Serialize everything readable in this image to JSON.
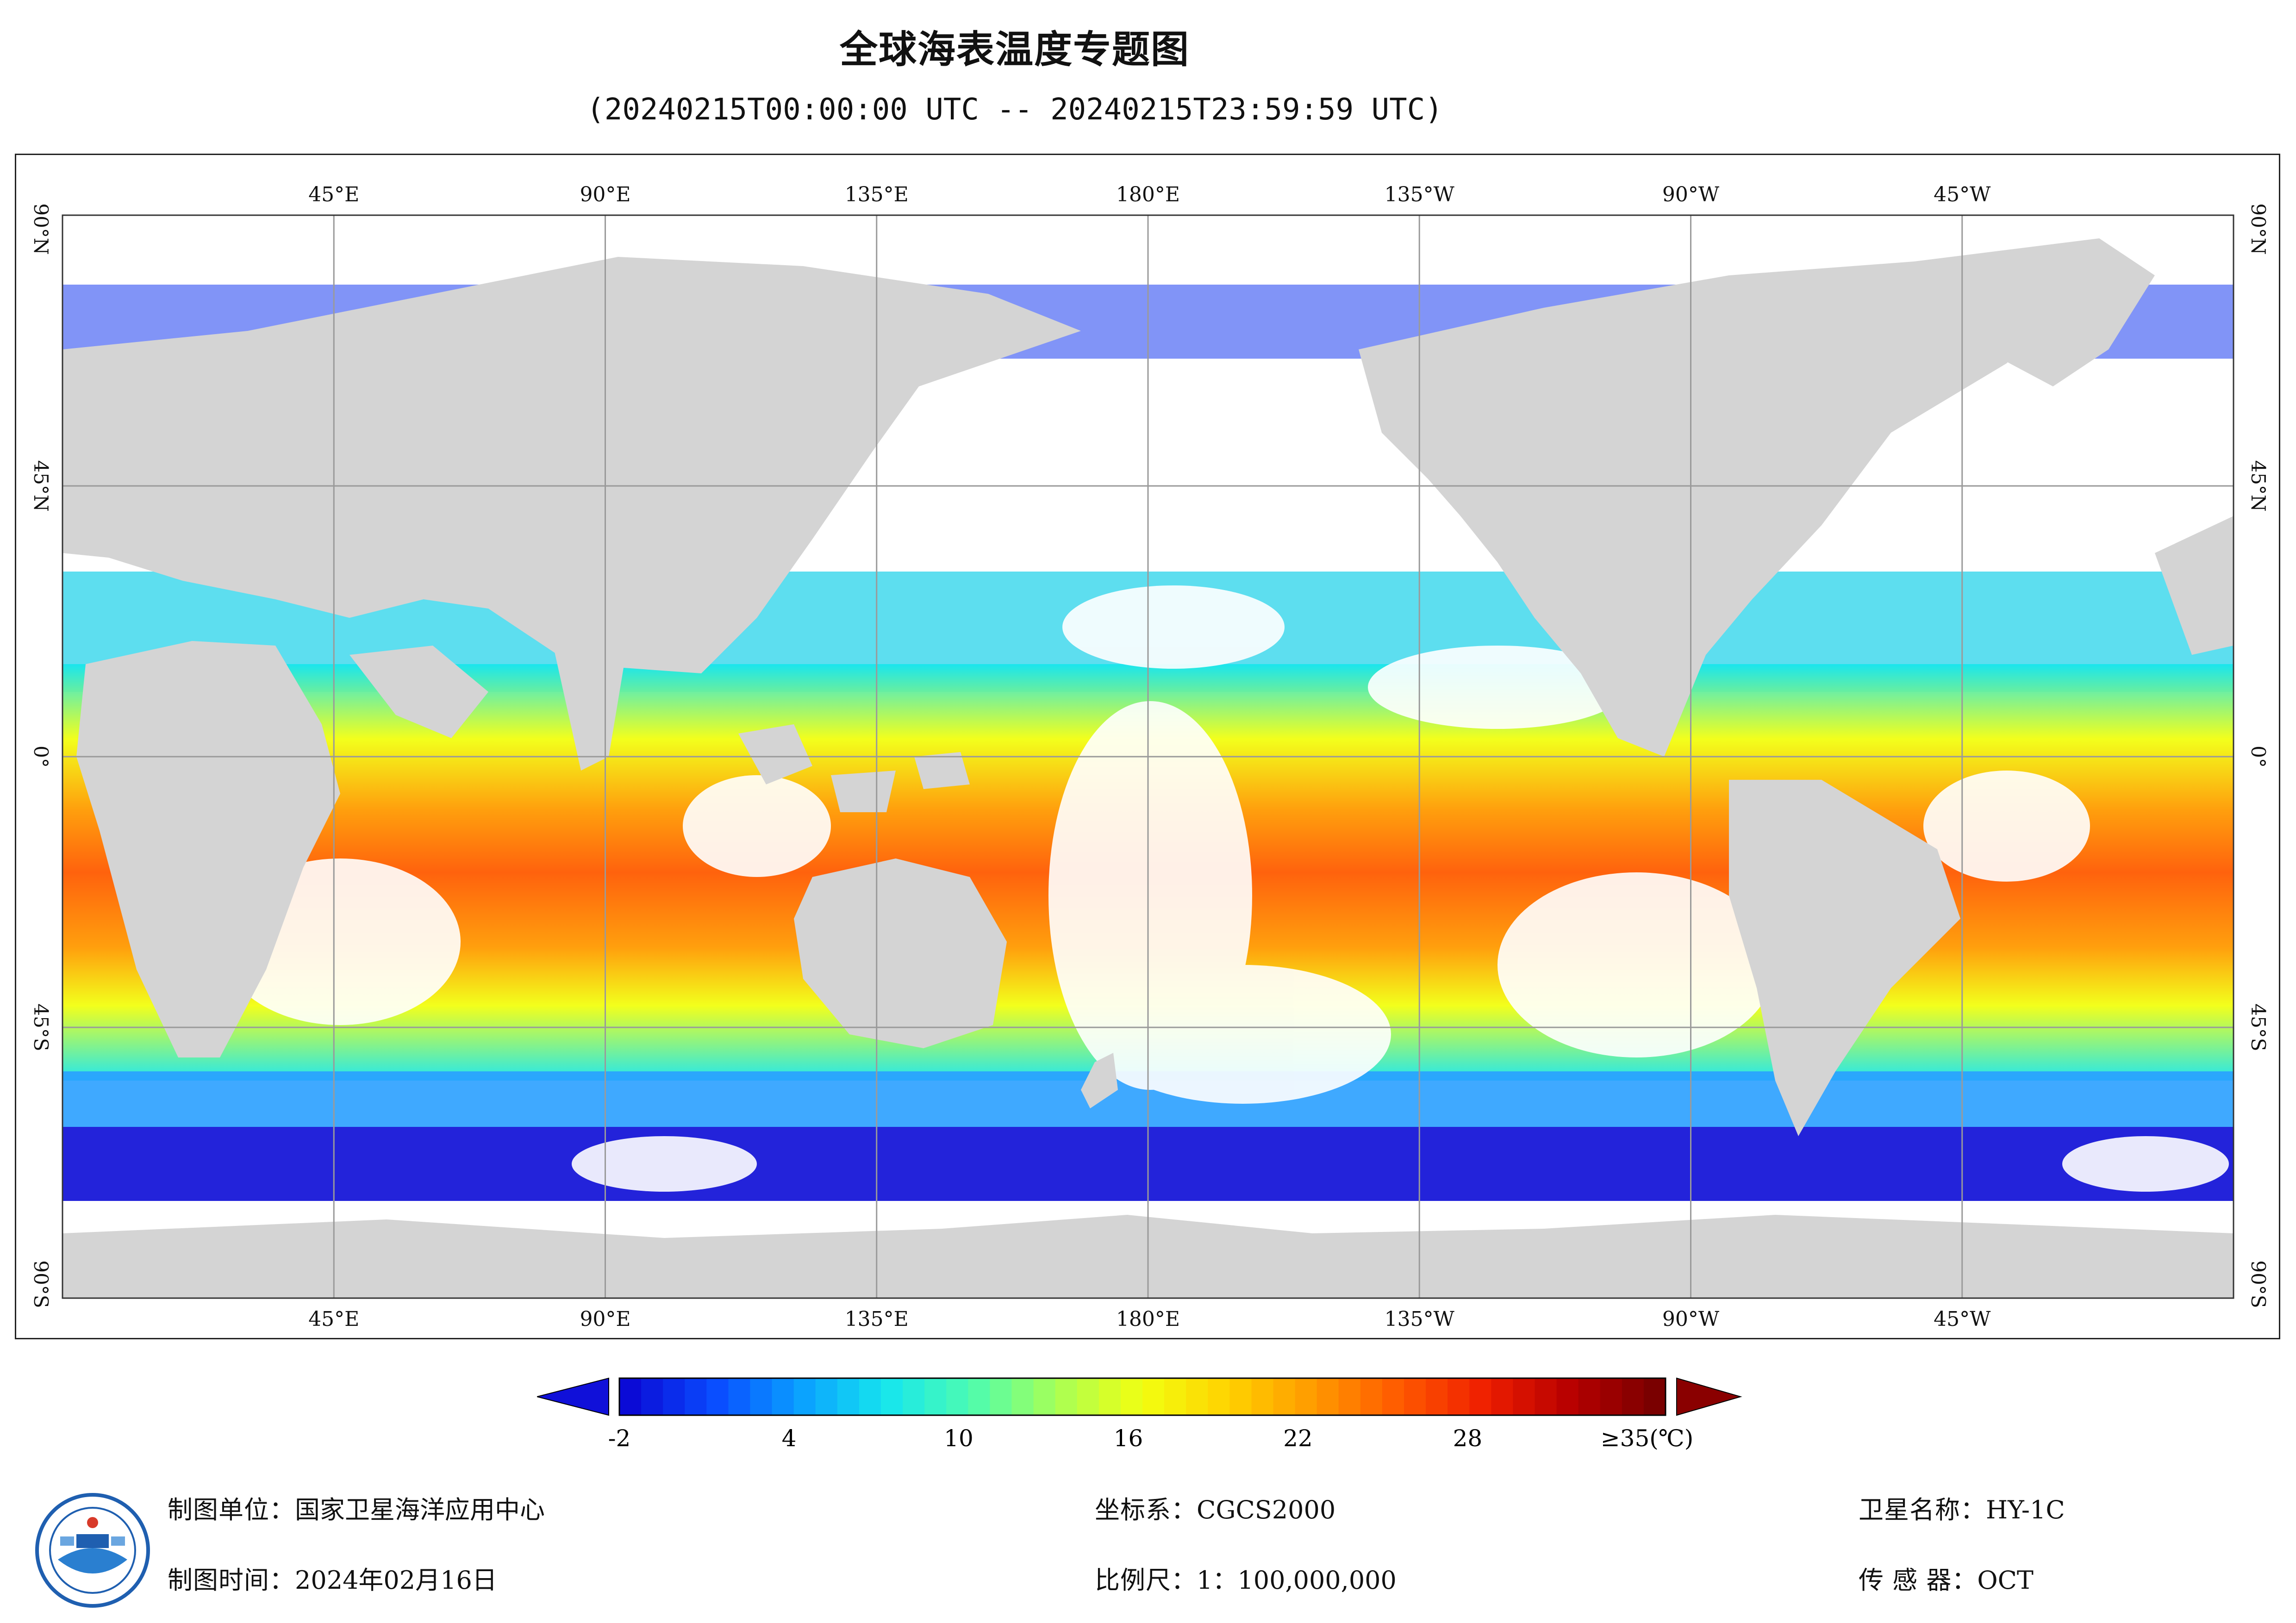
{
  "header": {
    "title": "全球海表温度专题图",
    "subtitle": "(20240215T00:00:00 UTC -- 20240215T23:59:59 UTC)"
  },
  "map": {
    "lon_labels": [
      "45°E",
      "90°E",
      "135°E",
      "180°E",
      "135°W",
      "90°W",
      "45°W"
    ],
    "lat_labels": [
      "90°N",
      "45°N",
      "0°",
      "45°S",
      "90°S"
    ],
    "grid": true,
    "central_meridian": "180°E",
    "projection": "Equirectangular"
  },
  "legend": {
    "ticks": [
      "-2",
      "4",
      "10",
      "16",
      "22",
      "28",
      "≥35(℃)"
    ],
    "tick_values": [
      -2,
      4,
      10,
      16,
      22,
      28,
      35
    ],
    "range": [
      -2,
      35
    ],
    "colors": [
      "#0b0bd6",
      "#0a4cff",
      "#0aa0ff",
      "#16e6ee",
      "#4dfcb0",
      "#a8ff55",
      "#f2ff10",
      "#ffd200",
      "#ff9a00",
      "#ff5a00",
      "#ef1f00",
      "#b80000",
      "#7a0000"
    ],
    "under_color": "#1010d9",
    "over_color": "#8a0000"
  },
  "footer": {
    "unit_label": "制图单位：",
    "unit_value": "国家卫星海洋应用中心",
    "time_label": "制图时间：",
    "time_value": "2024年02月16日",
    "crs_label": "坐标系：",
    "crs_value": "CGCS2000",
    "scale_label": "比例尺：",
    "scale_value": "1：100,000,000",
    "satellite_label": "卫星名称：",
    "satellite_value": "HY-1C",
    "sensor_label": "传 感 器：",
    "sensor_value": "OCT"
  }
}
